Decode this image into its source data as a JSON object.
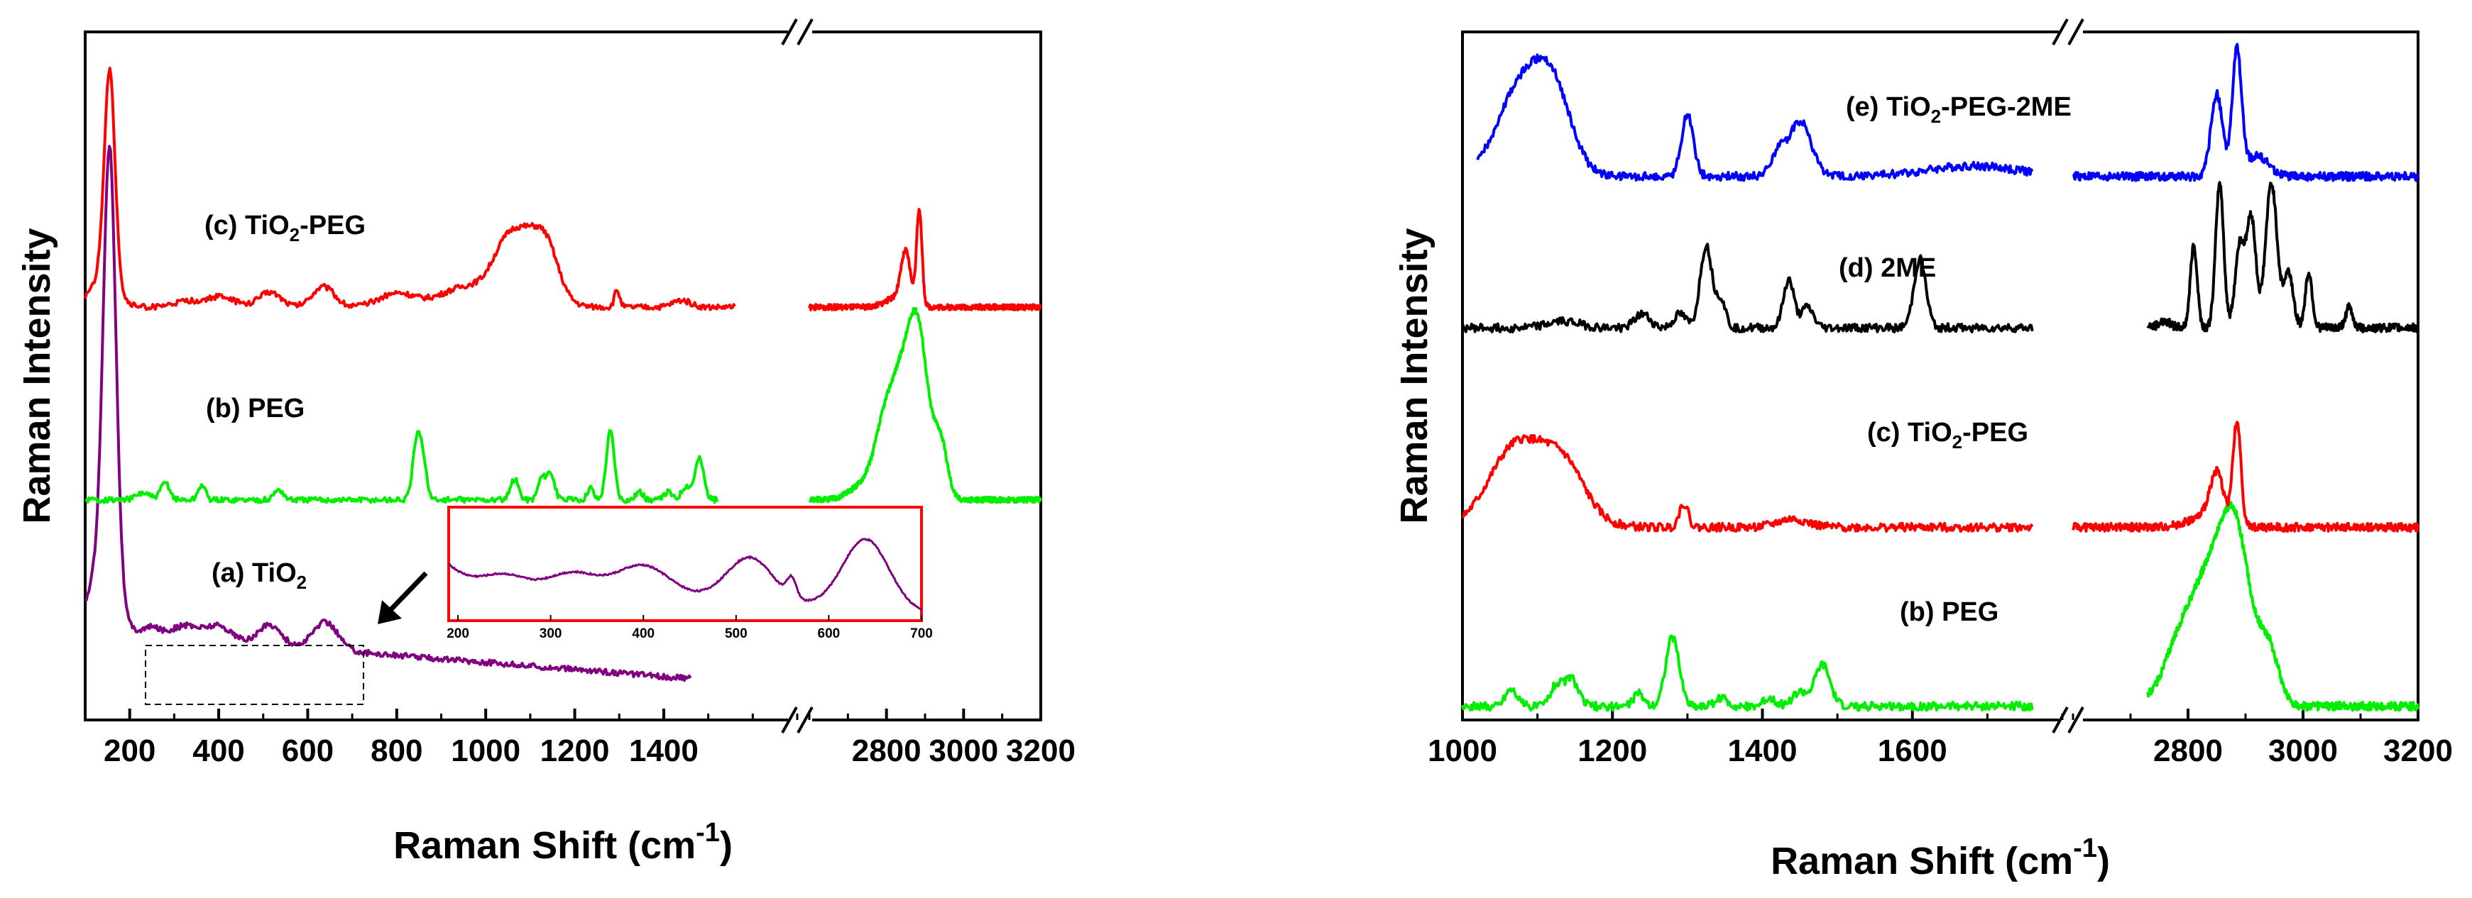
{
  "chart_data": [
    {
      "type": "line",
      "panel": "left",
      "xlabel": "Raman Shift (cm-1)",
      "xlabel_text": "Raman Shift (",
      "xlabel_unit": "cm",
      "xlabel_exp": "-1",
      "xlabel_close": ")",
      "ylabel": "Raman Intensity",
      "x_segments": [
        [
          100,
          1700
        ],
        [
          2600,
          3200
        ]
      ],
      "x_ticks_left": [
        200,
        400,
        600,
        800,
        1000,
        1200,
        1400
      ],
      "x_ticks_right": [
        2800,
        3000,
        3200
      ],
      "x_tick_labels_left": [
        "200",
        "400",
        "600",
        "800",
        "1000",
        "1200",
        "1400"
      ],
      "x_tick_labels_right": [
        "2800",
        "3000",
        "3200"
      ],
      "series": [
        {
          "id": "a",
          "label_prefix": "(a) TiO",
          "label_sub": "2",
          "label_suffix": "",
          "color": "#800080",
          "baseline": 0.06,
          "range1": [
            100,
            1460
          ],
          "range2": null,
          "background": [
            [
              100,
              0.07
            ],
            [
              1460,
              0.0
            ]
          ],
          "peaks": [
            [
              155,
              0.62,
              14
            ],
            [
              140,
              0.1,
              30
            ],
            [
              250,
              0.012,
              20
            ],
            [
              325,
              0.018,
              30
            ],
            [
              400,
              0.022,
              30
            ],
            [
              515,
              0.03,
              25
            ],
            [
              640,
              0.04,
              28
            ]
          ]
        },
        {
          "id": "b",
          "label_prefix": "(b) PEG",
          "label_sub": "",
          "label_suffix": "",
          "color": "#00ee00",
          "baseline": 0.32,
          "range1": [
            100,
            1520
          ],
          "range2": [
            2600,
            3200
          ],
          "background": [
            [
              100,
              0.0
            ],
            [
              1520,
              0.0
            ]
          ],
          "peaks": [
            [
              230,
              0.01,
              15
            ],
            [
              280,
              0.025,
              10
            ],
            [
              362,
              0.022,
              8
            ],
            [
              535,
              0.015,
              10
            ],
            [
              845,
              0.085,
              9
            ],
            [
              860,
              0.05,
              8
            ],
            [
              1065,
              0.03,
              9
            ],
            [
              1125,
              0.03,
              8
            ],
            [
              1145,
              0.04,
              9
            ],
            [
              1235,
              0.018,
              7
            ],
            [
              1280,
              0.1,
              9
            ],
            [
              1345,
              0.012,
              8
            ],
            [
              1410,
              0.012,
              8
            ],
            [
              1450,
              0.02,
              10
            ],
            [
              1480,
              0.06,
              10
            ],
            [
              2720,
              0.01,
              30
            ],
            [
              2800,
              0.07,
              40
            ],
            [
              2845,
              0.14,
              35
            ],
            [
              2885,
              0.18,
              25
            ],
            [
              2940,
              0.08,
              18
            ],
            [
              2790,
              0.02,
              20
            ]
          ]
        },
        {
          "id": "c",
          "label_prefix": "(c) TiO",
          "label_sub": "2",
          "label_suffix": "-PEG",
          "color": "#ff0000",
          "baseline": 0.6,
          "range1": [
            100,
            1560
          ],
          "range2": [
            2600,
            3200
          ],
          "background": [
            [
              100,
              0.0
            ],
            [
              1560,
              0.0
            ]
          ],
          "peaks": [
            [
              155,
              0.31,
              12
            ],
            [
              140,
              0.04,
              30
            ],
            [
              330,
              0.008,
              30
            ],
            [
              405,
              0.015,
              30
            ],
            [
              515,
              0.022,
              25
            ],
            [
              635,
              0.03,
              25
            ],
            [
              800,
              0.02,
              40
            ],
            [
              960,
              0.03,
              60
            ],
            [
              1040,
              0.04,
              30
            ],
            [
              1095,
              0.1,
              45
            ],
            [
              1140,
              0.04,
              25
            ],
            [
              1295,
              0.025,
              6
            ],
            [
              1440,
              0.01,
              20
            ],
            [
              2850,
              0.07,
              12
            ],
            [
              2885,
              0.14,
              7
            ],
            [
              2830,
              0.015,
              30
            ]
          ]
        }
      ],
      "inset": {
        "border_color": "#ff0000",
        "x_ticks": [
          200,
          300,
          400,
          500,
          600,
          700
        ],
        "x_tick_labels": [
          "200",
          "300",
          "400",
          "500",
          "600",
          "700"
        ],
        "x_range": [
          190,
          700
        ],
        "color": "#800080",
        "peaks": [
          [
            145,
            0.3,
            30
          ],
          [
            250,
            0.06,
            20
          ],
          [
            325,
            0.1,
            25
          ],
          [
            400,
            0.18,
            28
          ],
          [
            515,
            0.28,
            25
          ],
          [
            560,
            0.12,
            5
          ],
          [
            640,
            0.45,
            25
          ]
        ],
        "background": [
          [
            190,
            0.22
          ],
          [
            700,
            0.0
          ]
        ]
      }
    },
    {
      "type": "line",
      "panel": "right",
      "xlabel": "Raman Shift (cm-1)",
      "xlabel_text": "Raman Shift (",
      "xlabel_unit": "cm",
      "xlabel_exp": "-1",
      "xlabel_close": ")",
      "ylabel": "Raman Intensity",
      "x_segments": [
        [
          1000,
          1800
        ],
        [
          2600,
          3200
        ]
      ],
      "x_ticks_left": [
        1000,
        1200,
        1400,
        1600
      ],
      "x_ticks_right": [
        2800,
        3000,
        3200
      ],
      "x_tick_labels_left": [
        "1000",
        "1200",
        "1400",
        "1600"
      ],
      "x_tick_labels_right": [
        "2800",
        "3000",
        "3200"
      ],
      "series": [
        {
          "id": "b",
          "label_prefix": "(b) PEG",
          "label_sub": "",
          "label_suffix": "",
          "color": "#00ee00",
          "baseline": 0.02,
          "range1": [
            1000,
            1760
          ],
          "range2": [
            2730,
            3200
          ],
          "background": [
            [
              1000,
              0.0
            ],
            [
              1760,
              0.0
            ]
          ],
          "peaks": [
            [
              1065,
              0.025,
              8
            ],
            [
              1125,
              0.03,
              8
            ],
            [
              1145,
              0.04,
              9
            ],
            [
              1235,
              0.018,
              7
            ],
            [
              1280,
              0.1,
              9
            ],
            [
              1345,
              0.012,
              8
            ],
            [
              1410,
              0.012,
              8
            ],
            [
              1450,
              0.02,
              10
            ],
            [
              1480,
              0.06,
              10
            ],
            [
              2800,
              0.07,
              40
            ],
            [
              2845,
              0.15,
              35
            ],
            [
              2885,
              0.19,
              25
            ],
            [
              2940,
              0.08,
              18
            ],
            [
              2780,
              0.02,
              20
            ]
          ]
        },
        {
          "id": "c",
          "label_prefix": "(c) TiO",
          "label_sub": "2",
          "label_suffix": "-PEG",
          "color": "#ff0000",
          "baseline": 0.28,
          "range1": [
            1000,
            1760
          ],
          "range2": [
            2600,
            3200
          ],
          "background": [
            [
              1000,
              0.0
            ],
            [
              1760,
              0.0
            ]
          ],
          "peaks": [
            [
              1095,
              0.1,
              45
            ],
            [
              1140,
              0.04,
              25
            ],
            [
              1060,
              0.04,
              30
            ],
            [
              1295,
              0.035,
              6
            ],
            [
              1440,
              0.012,
              20
            ],
            [
              2850,
              0.07,
              12
            ],
            [
              2885,
              0.15,
              7
            ],
            [
              2830,
              0.015,
              30
            ]
          ]
        },
        {
          "id": "d",
          "label_prefix": "(d) 2ME",
          "label_sub": "",
          "label_suffix": "",
          "color": "#000000",
          "baseline": 0.57,
          "range1": [
            1000,
            1760
          ],
          "range2": [
            2730,
            3200
          ],
          "background": [
            [
              1000,
              0.0
            ],
            [
              1760,
              0.0
            ]
          ],
          "peaks": [
            [
              1135,
              0.01,
              20
            ],
            [
              1240,
              0.02,
              10
            ],
            [
              1290,
              0.02,
              8
            ],
            [
              1325,
              0.12,
              8
            ],
            [
              1345,
              0.04,
              6
            ],
            [
              1435,
              0.07,
              7
            ],
            [
              1460,
              0.03,
              8
            ],
            [
              1610,
              0.1,
              8
            ],
            [
              2810,
              0.12,
              6
            ],
            [
              2855,
              0.21,
              7
            ],
            [
              2890,
              0.12,
              8
            ],
            [
              2910,
              0.16,
              8
            ],
            [
              2945,
              0.21,
              10
            ],
            [
              2975,
              0.08,
              8
            ],
            [
              3010,
              0.08,
              6
            ],
            [
              3080,
              0.03,
              6
            ],
            [
              2760,
              0.01,
              10
            ]
          ]
        },
        {
          "id": "e",
          "label_prefix": "(e)  TiO",
          "label_sub": "2",
          "label_suffix": "-PEG-2ME",
          "color": "#0000ff",
          "baseline": 0.79,
          "range1": [
            1020,
            1760
          ],
          "range2": [
            2600,
            3200
          ],
          "background": [
            [
              1020,
              0.0
            ],
            [
              1760,
              0.0
            ]
          ],
          "peaks": [
            [
              1075,
              0.12,
              30
            ],
            [
              1120,
              0.12,
              25
            ],
            [
              1300,
              0.09,
              8
            ],
            [
              1450,
              0.08,
              15
            ],
            [
              1420,
              0.03,
              10
            ],
            [
              1680,
              0.015,
              60
            ],
            [
              2850,
              0.12,
              10
            ],
            [
              2885,
              0.18,
              8
            ],
            [
              2920,
              0.03,
              20
            ]
          ]
        }
      ]
    }
  ]
}
